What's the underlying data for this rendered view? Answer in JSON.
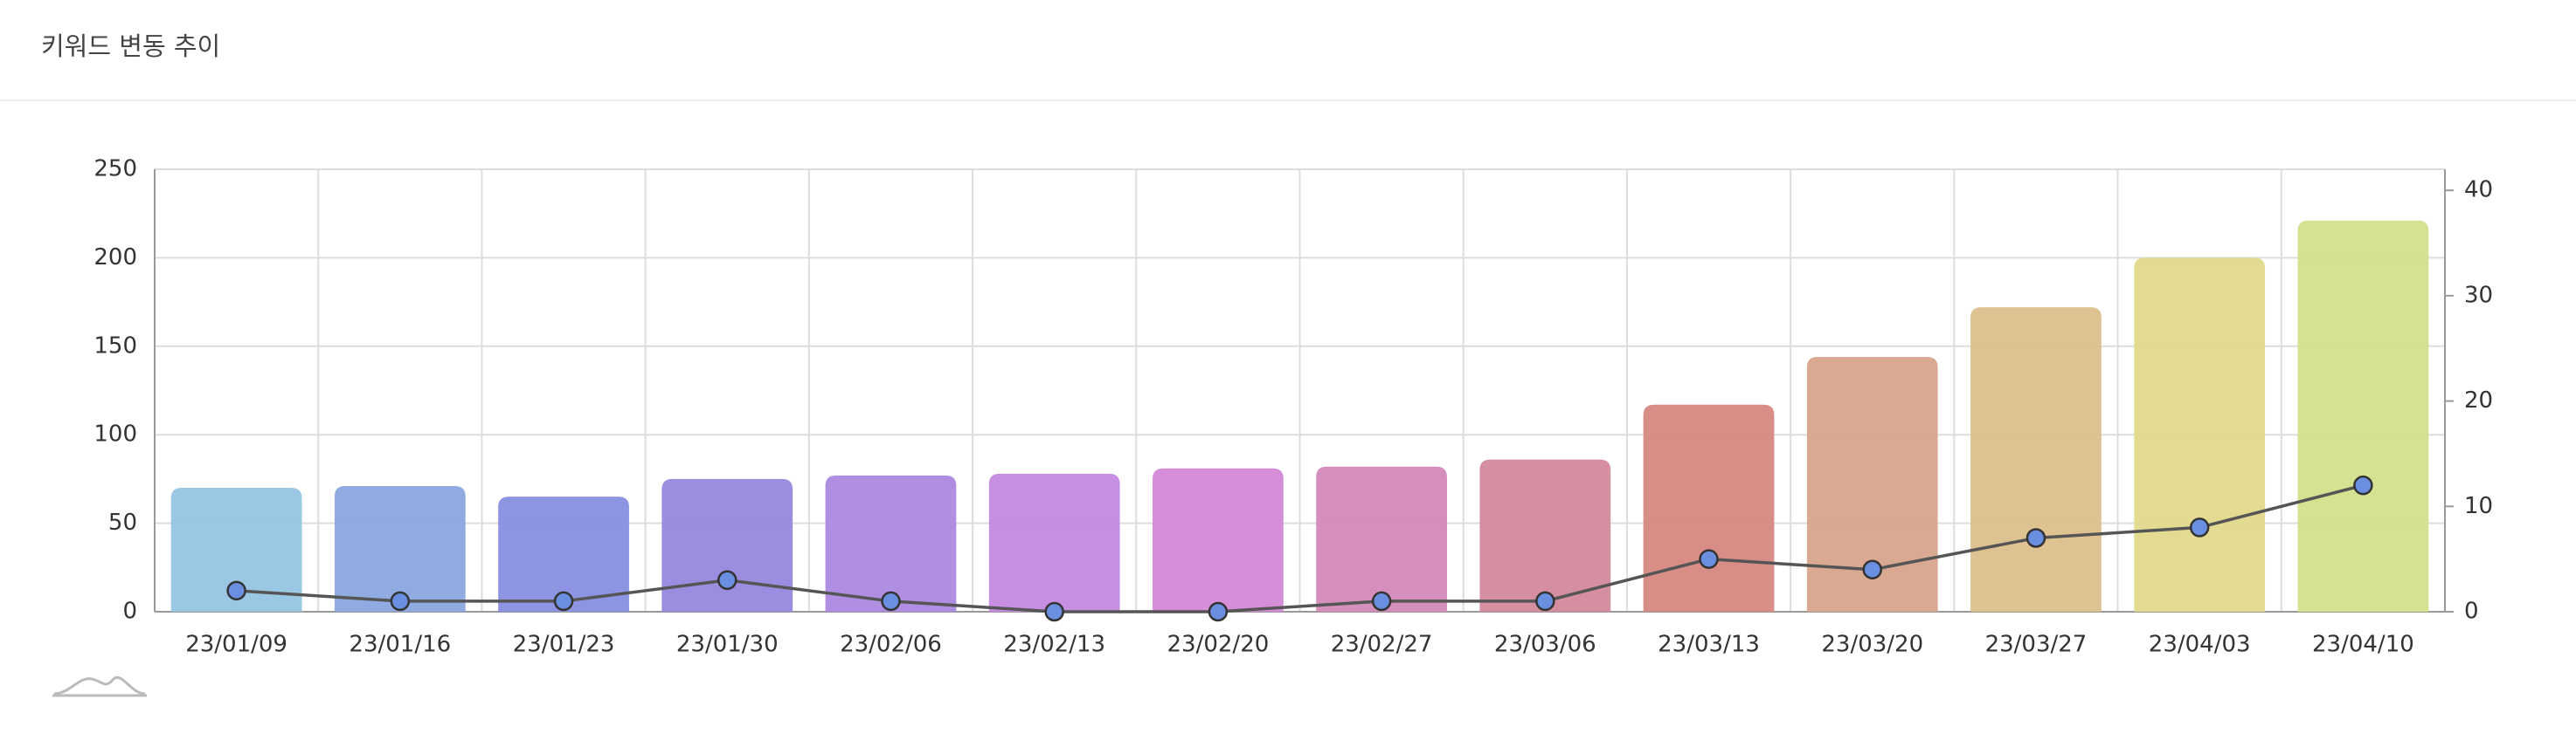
{
  "chart_data": {
    "type": "combo",
    "title": "키워드 변동 추이",
    "categories": [
      "23/01/09",
      "23/01/16",
      "23/01/23",
      "23/01/30",
      "23/02/06",
      "23/02/13",
      "23/02/20",
      "23/02/27",
      "23/03/06",
      "23/03/13",
      "23/03/20",
      "23/03/27",
      "23/04/03",
      "23/04/10"
    ],
    "series": [
      {
        "type": "bar",
        "values": [
          70,
          71,
          65,
          75,
          77,
          78,
          81,
          82,
          86,
          117,
          144,
          172,
          200,
          221
        ],
        "colors": [
          "#95c5e3",
          "#8aa7e0",
          "#878ee0",
          "#9887de",
          "#ac88e0",
          "#c488e0",
          "#d488d6",
          "#d488b8",
          "#d4889c",
          "#d68880",
          "#d8a48b",
          "#dcbf8b",
          "#e2d98b",
          "#d2e08b"
        ]
      },
      {
        "type": "line",
        "axis": "y2",
        "color": "#555555",
        "marker_color": "#6b8fe0",
        "values": [
          2,
          1,
          1,
          3,
          1,
          0,
          0,
          1,
          1,
          5,
          4,
          7,
          8,
          12
        ]
      }
    ],
    "ylim": [
      0,
      250
    ],
    "yticks": [
      0,
      50,
      100,
      150,
      200,
      250
    ],
    "y2lim": [
      0,
      42
    ],
    "y2ticks": [
      0,
      10,
      20,
      30,
      40
    ],
    "grid": true
  }
}
